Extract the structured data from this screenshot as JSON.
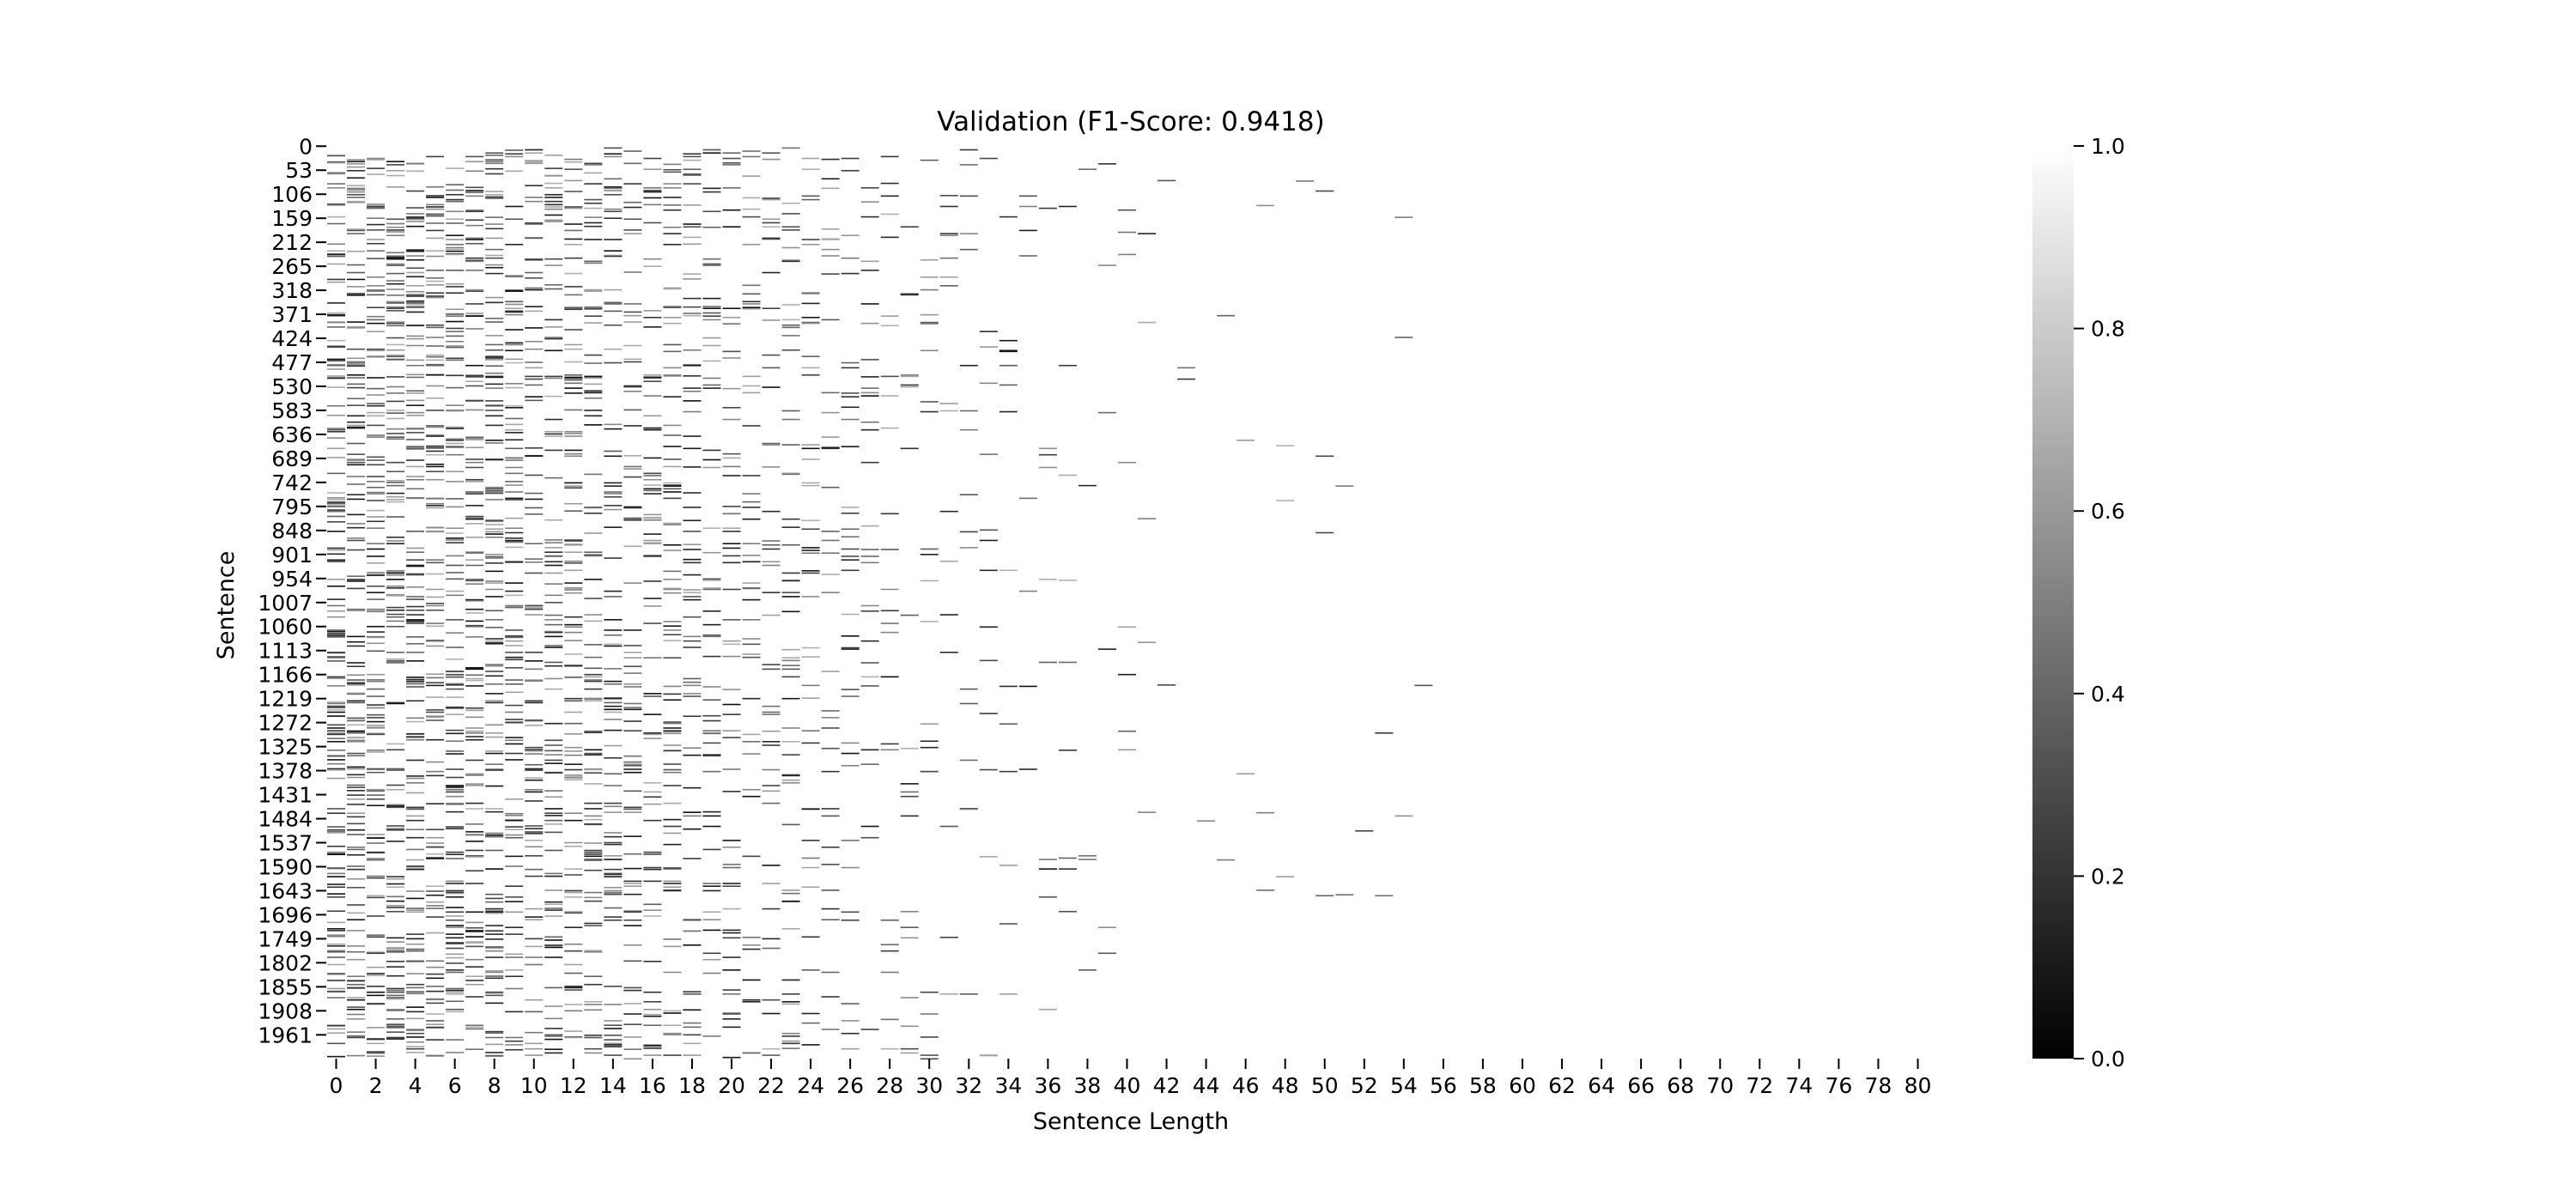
{
  "chart_data": {
    "type": "heatmap",
    "title": "Validation (F1-Score: 0.9418)",
    "xlabel": "Sentence Length",
    "ylabel": "Sentence",
    "x_ticks": [
      "0",
      "2",
      "4",
      "6",
      "8",
      "10",
      "12",
      "14",
      "16",
      "18",
      "20",
      "22",
      "24",
      "26",
      "28",
      "30",
      "32",
      "34",
      "36",
      "38",
      "40",
      "42",
      "44",
      "46",
      "48",
      "50",
      "52",
      "54",
      "56",
      "58",
      "60",
      "62",
      "64",
      "66",
      "68",
      "70",
      "72",
      "74",
      "76",
      "78",
      "80"
    ],
    "y_ticks": [
      "0",
      "53",
      "106",
      "159",
      "212",
      "265",
      "318",
      "371",
      "424",
      "477",
      "530",
      "583",
      "636",
      "689",
      "742",
      "795",
      "848",
      "901",
      "954",
      "1007",
      "1060",
      "1113",
      "1166",
      "1219",
      "1272",
      "1325",
      "1378",
      "1431",
      "1484",
      "1537",
      "1590",
      "1643",
      "1696",
      "1749",
      "1802",
      "1855",
      "1908",
      "1961"
    ],
    "x_range": [
      0,
      81
    ],
    "y_range": [
      0,
      2014
    ],
    "colormap": "grayscale (black = 0, white = 1)",
    "colorbar": {
      "range": [
        0.0,
        1.0
      ],
      "ticks": [
        "0.0",
        "0.2",
        "0.4",
        "0.6",
        "0.8",
        "1.0"
      ]
    },
    "grid": false,
    "colors": {
      "min": "#000000",
      "max": "#ffffff"
    }
  }
}
